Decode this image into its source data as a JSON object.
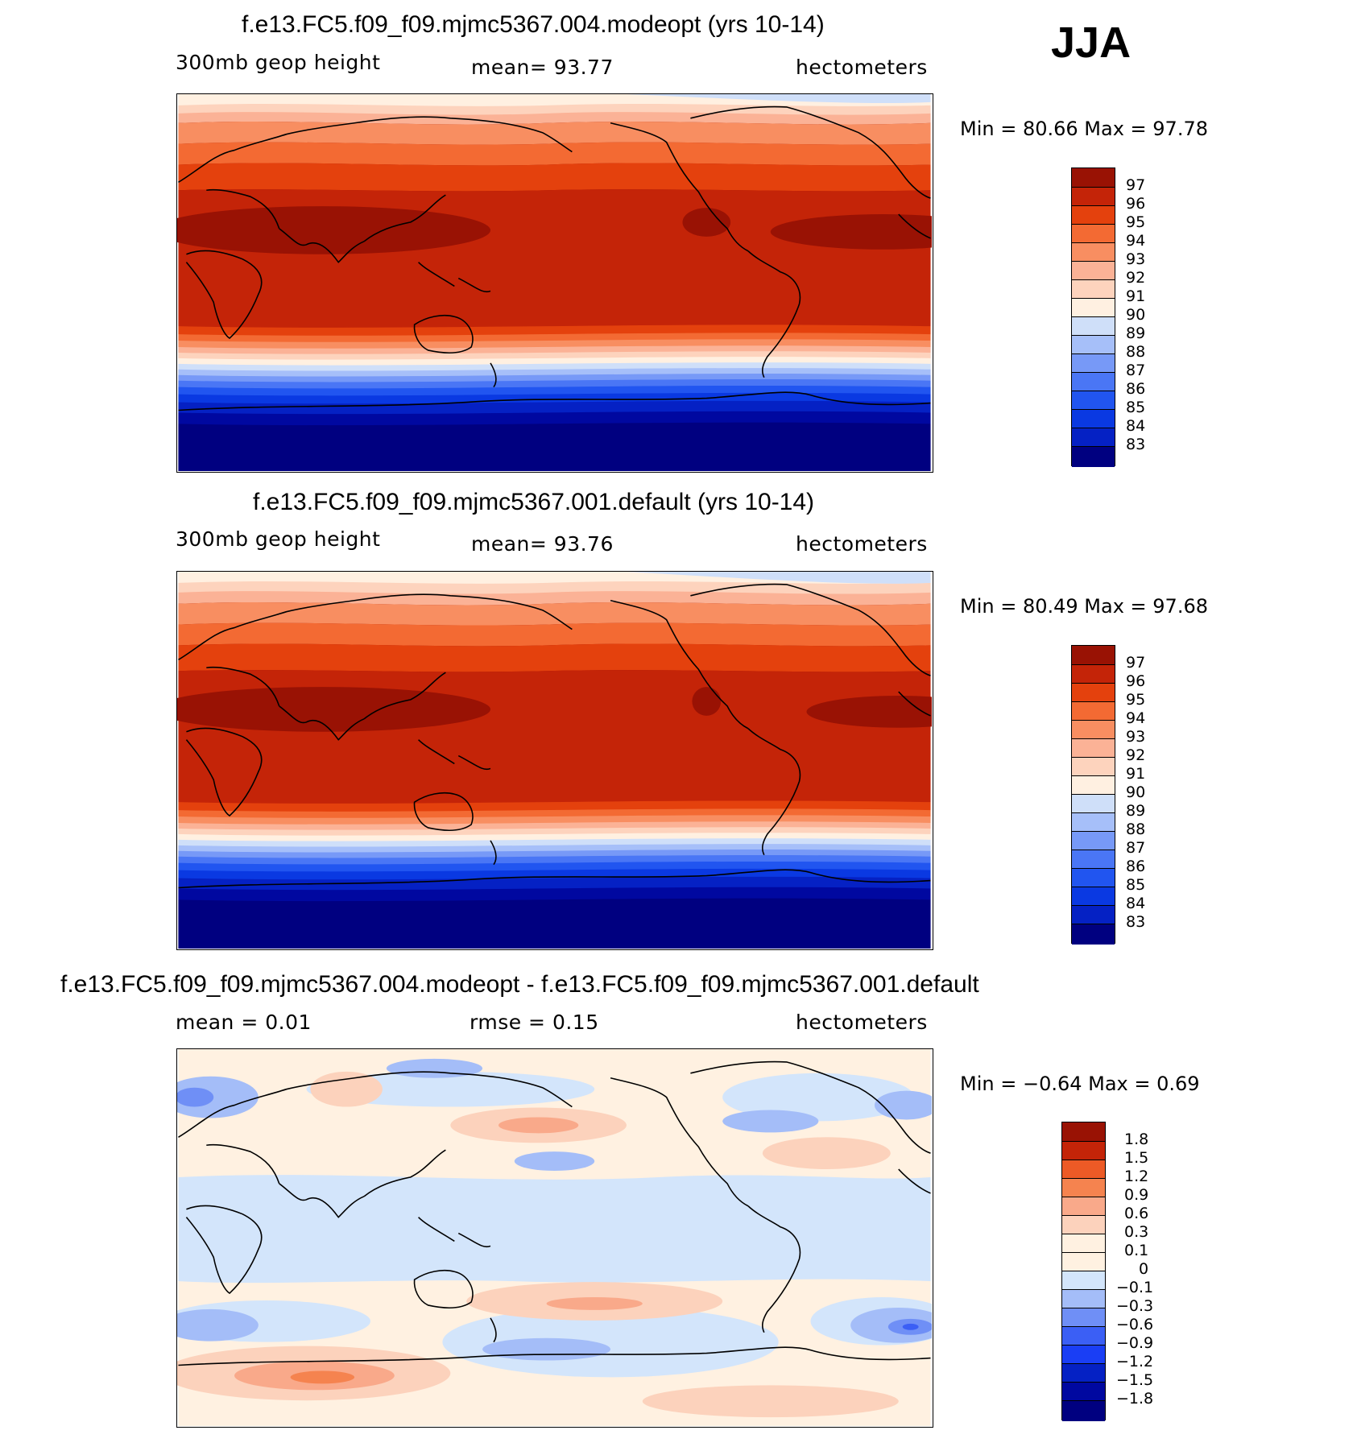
{
  "season": "JJA",
  "colors": {
    "abs_levels": [
      "#000080",
      "#0008a0",
      "#0521c4",
      "#0a39e2",
      "#2155f0",
      "#4a76f5",
      "#7799f7",
      "#a6bff9",
      "#cfdff9",
      "#fff0e1",
      "#fdd3bd",
      "#fbb296",
      "#f88e61",
      "#f36a33",
      "#e4410d",
      "#c42408",
      "#991204"
    ],
    "diff_levels": [
      "#000080",
      "#0521c4",
      "#1a3ef5",
      "#3b5ff5",
      "#6f8ff6",
      "#a4bdf8",
      "#d3e5fb",
      "#fff1e1",
      "#fcd2bc",
      "#f9a98a",
      "#f5834f",
      "#ed5a26",
      "#c42408",
      "#991204"
    ]
  },
  "panels": [
    {
      "title": "f.e13.FC5.f09_f09.mjmc5367.004.modeopt (yrs 10-14)",
      "left_label": "300mb  geop  height",
      "center_label": "mean=   93.77",
      "units": "hectometers",
      "minmax": "Min  =    80.66  Max  =    97.78",
      "colorbar_ticks": [
        "97",
        "96",
        "95",
        "94",
        "93",
        "92",
        "91",
        "90",
        "89",
        "88",
        "87",
        "86",
        "85",
        "84",
        "83"
      ]
    },
    {
      "title": "f.e13.FC5.f09_f09.mjmc5367.001.default (yrs 10-14)",
      "left_label": "300mb  geop  height",
      "center_label": "mean=   93.76",
      "units": "hectometers",
      "minmax": "Min  =    80.49  Max  =    97.68",
      "colorbar_ticks": [
        "97",
        "96",
        "95",
        "94",
        "93",
        "92",
        "91",
        "90",
        "89",
        "88",
        "87",
        "86",
        "85",
        "84",
        "83"
      ]
    },
    {
      "title": "f.e13.FC5.f09_f09.mjmc5367.004.modeopt - f.e13.FC5.f09_f09.mjmc5367.001.default",
      "left_label": "mean  =     0.01",
      "center_label": "rmse  =     0.15",
      "units": "hectometers",
      "minmax": "Min  =   −0.64  Max  =     0.69",
      "colorbar_ticks": [
        "1.8",
        "1.5",
        "1.2",
        "0.9",
        "0.6",
        "0.3",
        "0.1",
        "0",
        "−0.1",
        "−0.3",
        "−0.6",
        "−0.9",
        "−1.2",
        "−1.5",
        "−1.8"
      ]
    }
  ],
  "chart_data": [
    {
      "type": "heatmap",
      "title": "f.e13.FC5.f09_f09.mjmc5367.004.modeopt (yrs 10-14)",
      "variable": "300mb  geop  height",
      "units": "hectometers",
      "mean": 93.77,
      "min": 80.66,
      "max": 97.78,
      "season": "JJA",
      "contour_levels": [
        83,
        84,
        85,
        86,
        87,
        88,
        89,
        90,
        91,
        92,
        93,
        94,
        95,
        96,
        97
      ]
    },
    {
      "type": "heatmap",
      "title": "f.e13.FC5.f09_f09.mjmc5367.001.default (yrs 10-14)",
      "variable": "300mb  geop  height",
      "units": "hectometers",
      "mean": 93.76,
      "min": 80.49,
      "max": 97.68,
      "season": "JJA",
      "contour_levels": [
        83,
        84,
        85,
        86,
        87,
        88,
        89,
        90,
        91,
        92,
        93,
        94,
        95,
        96,
        97
      ]
    },
    {
      "type": "heatmap",
      "title": "f.e13.FC5.f09_f09.mjmc5367.004.modeopt - f.e13.FC5.f09_f09.mjmc5367.001.default",
      "units": "hectometers",
      "mean": 0.01,
      "rmse": 0.15,
      "min": -0.64,
      "max": 0.69,
      "season": "JJA",
      "contour_levels": [
        -1.8,
        -1.5,
        -1.2,
        -0.9,
        -0.6,
        -0.3,
        -0.1,
        0,
        0.1,
        0.3,
        0.6,
        0.9,
        1.2,
        1.5,
        1.8
      ]
    }
  ]
}
